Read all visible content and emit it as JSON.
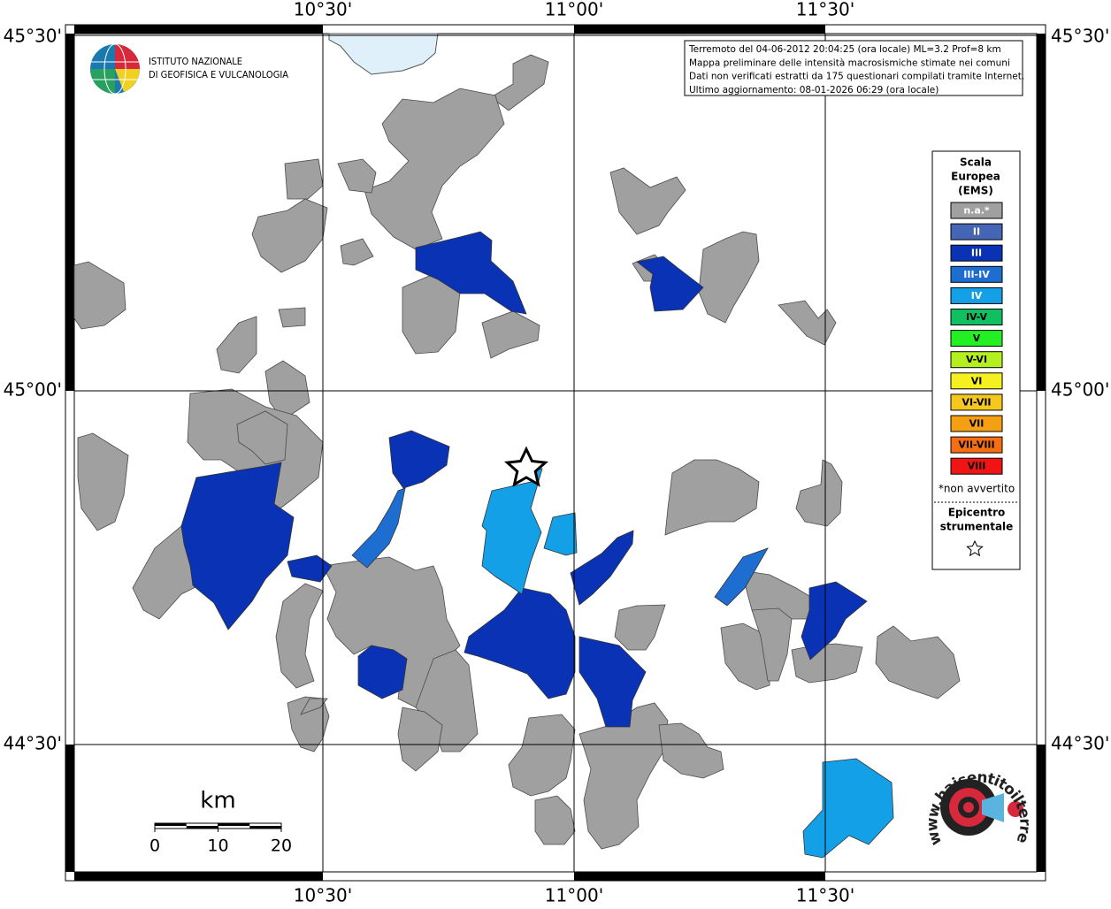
{
  "map": {
    "lon_labels": [
      "10°30'",
      "11°00'",
      "11°30'"
    ],
    "lat_labels": [
      "45°30'",
      "45°00'",
      "44°30'"
    ],
    "logo_lines": [
      "ISTITUTO NAZIONALE",
      "DI GEOFISICA E VULCANOLOGIA"
    ],
    "info_lines": [
      "Terremoto del 04-06-2012 20:04:25 (ora locale) ML=3.2 Prof=8 km",
      "Mappa preliminare delle intensità macrosismiche stimate nei comuni",
      "Dati non verificati estratti da 175 questionari compilati tramite Internet.",
      "Ultimo aggiornamento: 08-01-2026 06:29 (ora locale)"
    ],
    "legend": {
      "title_lines": [
        "Scala",
        "Europea",
        "(EMS)"
      ],
      "items": [
        {
          "label": "n.a.*",
          "color": "#a0a0a0"
        },
        {
          "label": "II",
          "color": "#4565b5"
        },
        {
          "label": "III",
          "color": "#0a32b4"
        },
        {
          "label": "III-IV",
          "color": "#1e6ed2"
        },
        {
          "label": "IV",
          "color": "#14a0e6"
        },
        {
          "label": "IV-V",
          "color": "#10c060"
        },
        {
          "label": "V",
          "color": "#22f022"
        },
        {
          "label": "V-VI",
          "color": "#b4f020"
        },
        {
          "label": "VI",
          "color": "#f5f020"
        },
        {
          "label": "VI-VII",
          "color": "#f5c820"
        },
        {
          "label": "VII",
          "color": "#f5a014"
        },
        {
          "label": "VII-VIII",
          "color": "#f56e14"
        },
        {
          "label": "VIII",
          "color": "#f01414"
        }
      ],
      "note": "*non avvertito",
      "epicenter_lines": [
        "Epicentro",
        "strumentale"
      ]
    },
    "scale_bar": {
      "unit": "km",
      "ticks": [
        0,
        10,
        20
      ]
    },
    "site_logo": "www.haisentitoilterremoto.it"
  }
}
